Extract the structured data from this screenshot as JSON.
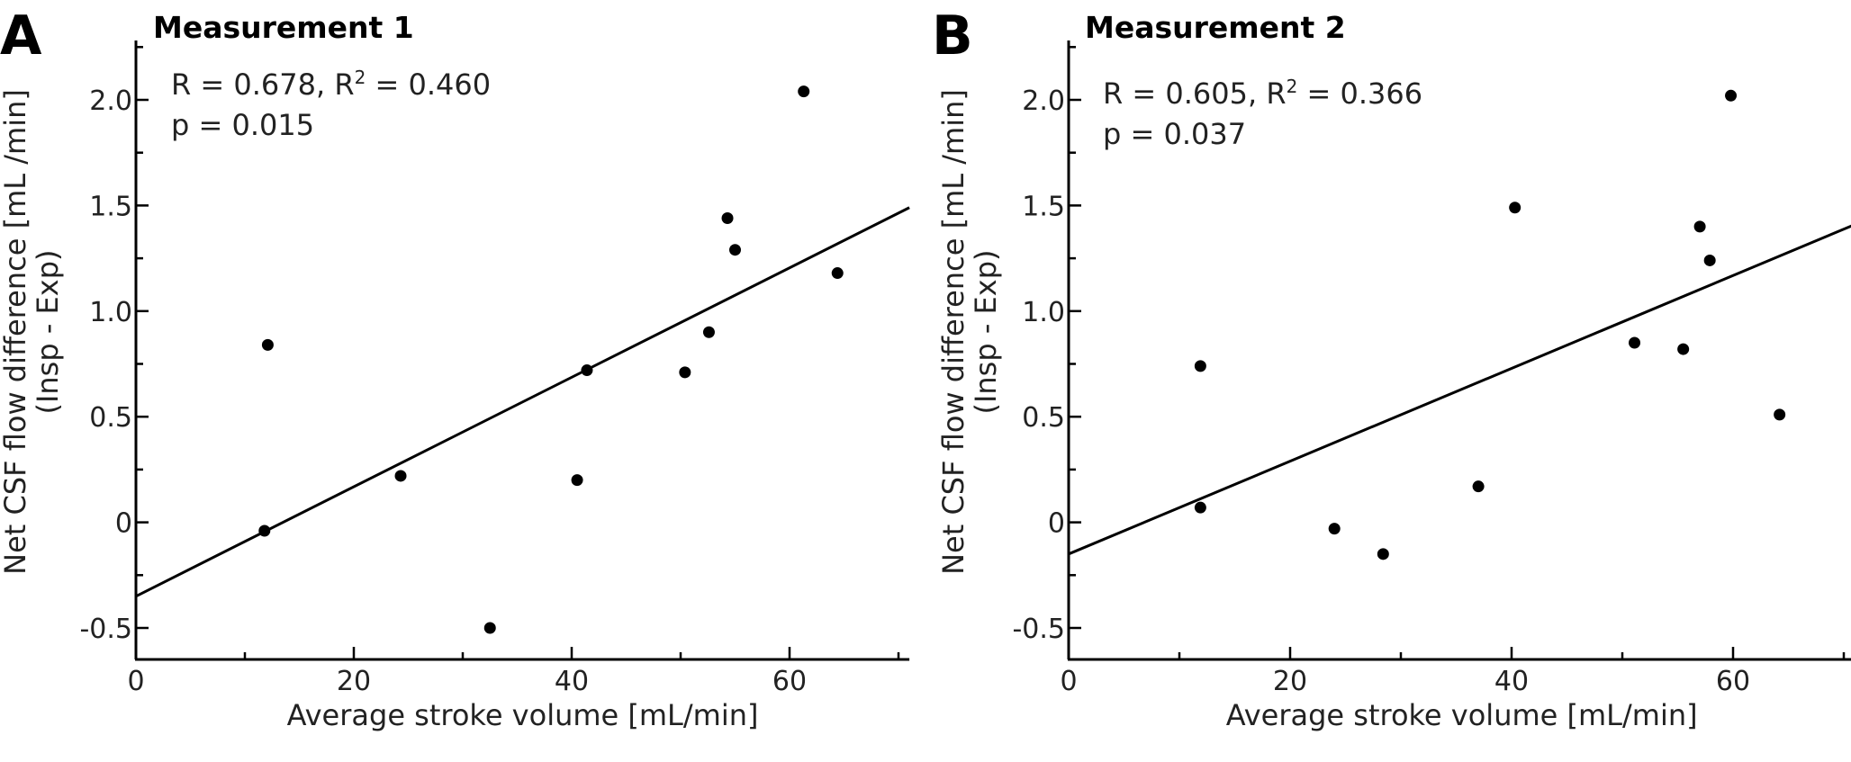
{
  "chart_data": [
    {
      "type": "scatter",
      "panel_letter": "A",
      "title": "Measurement 1",
      "xlabel": "Average stroke volume [mL/min]",
      "ylabel_line1": "Net CSF flow difference [mL /min]",
      "ylabel_line2": "(Insp - Exp)",
      "xlim": [
        0,
        71
      ],
      "ylim": [
        -0.65,
        2.3
      ],
      "xticks": [
        0,
        20,
        40,
        60
      ],
      "xtick_labels": [
        "0",
        "20",
        "40",
        "60"
      ],
      "yticks": [
        -0.5,
        0,
        0.5,
        1.0,
        1.5,
        2.0
      ],
      "ytick_labels": [
        "-0.5",
        "0",
        "0.5",
        "1.0",
        "1.5",
        "2.0"
      ],
      "stats_r_prefix": "R = 0.678, R",
      "stats_r_sup": "2",
      "stats_r_suffix": " = 0.460",
      "stats_p": "p = 0.015",
      "points": [
        {
          "x": 12.1,
          "y": 0.84
        },
        {
          "x": 11.8,
          "y": -0.04
        },
        {
          "x": 24.3,
          "y": 0.22
        },
        {
          "x": 32.5,
          "y": -0.5
        },
        {
          "x": 40.5,
          "y": 0.2
        },
        {
          "x": 41.4,
          "y": 0.72
        },
        {
          "x": 50.4,
          "y": 0.71
        },
        {
          "x": 52.6,
          "y": 0.9
        },
        {
          "x": 54.3,
          "y": 1.44
        },
        {
          "x": 55.0,
          "y": 1.29
        },
        {
          "x": 61.3,
          "y": 2.04
        },
        {
          "x": 64.4,
          "y": 1.18
        }
      ],
      "fit_line": {
        "x": [
          0,
          71
        ],
        "y": [
          -0.35,
          1.49
        ]
      }
    },
    {
      "type": "scatter",
      "panel_letter": "B",
      "title": "Measurement 2",
      "xlabel": "Average stroke volume [mL/min]",
      "ylabel_line1": "Net CSF flow difference [mL /min]",
      "ylabel_line2": "(Insp - Exp)",
      "xlim": [
        0,
        71
      ],
      "ylim": [
        -0.65,
        2.3
      ],
      "xticks": [
        0,
        20,
        40,
        60
      ],
      "xtick_labels": [
        "0",
        "20",
        "40",
        "60"
      ],
      "yticks": [
        -0.5,
        0,
        0.5,
        1.0,
        1.5,
        2.0
      ],
      "ytick_labels": [
        "-0.5",
        "0",
        "0.5",
        "1.0",
        "1.5",
        "2.0"
      ],
      "stats_r_prefix": "R = 0.605, R",
      "stats_r_sup": "2",
      "stats_r_suffix": " = 0.366",
      "stats_p": "p = 0.037",
      "points": [
        {
          "x": 11.9,
          "y": 0.74
        },
        {
          "x": 11.9,
          "y": 0.07
        },
        {
          "x": 24.0,
          "y": -0.03
        },
        {
          "x": 28.4,
          "y": -0.15
        },
        {
          "x": 37.0,
          "y": 0.17
        },
        {
          "x": 40.3,
          "y": 1.49
        },
        {
          "x": 51.1,
          "y": 0.85
        },
        {
          "x": 55.5,
          "y": 0.82
        },
        {
          "x": 57.0,
          "y": 1.4
        },
        {
          "x": 57.9,
          "y": 1.24
        },
        {
          "x": 59.8,
          "y": 2.02
        },
        {
          "x": 64.2,
          "y": 0.51
        }
      ],
      "fit_line": {
        "x": [
          0,
          71
        ],
        "y": [
          -0.15,
          1.41
        ]
      }
    }
  ]
}
